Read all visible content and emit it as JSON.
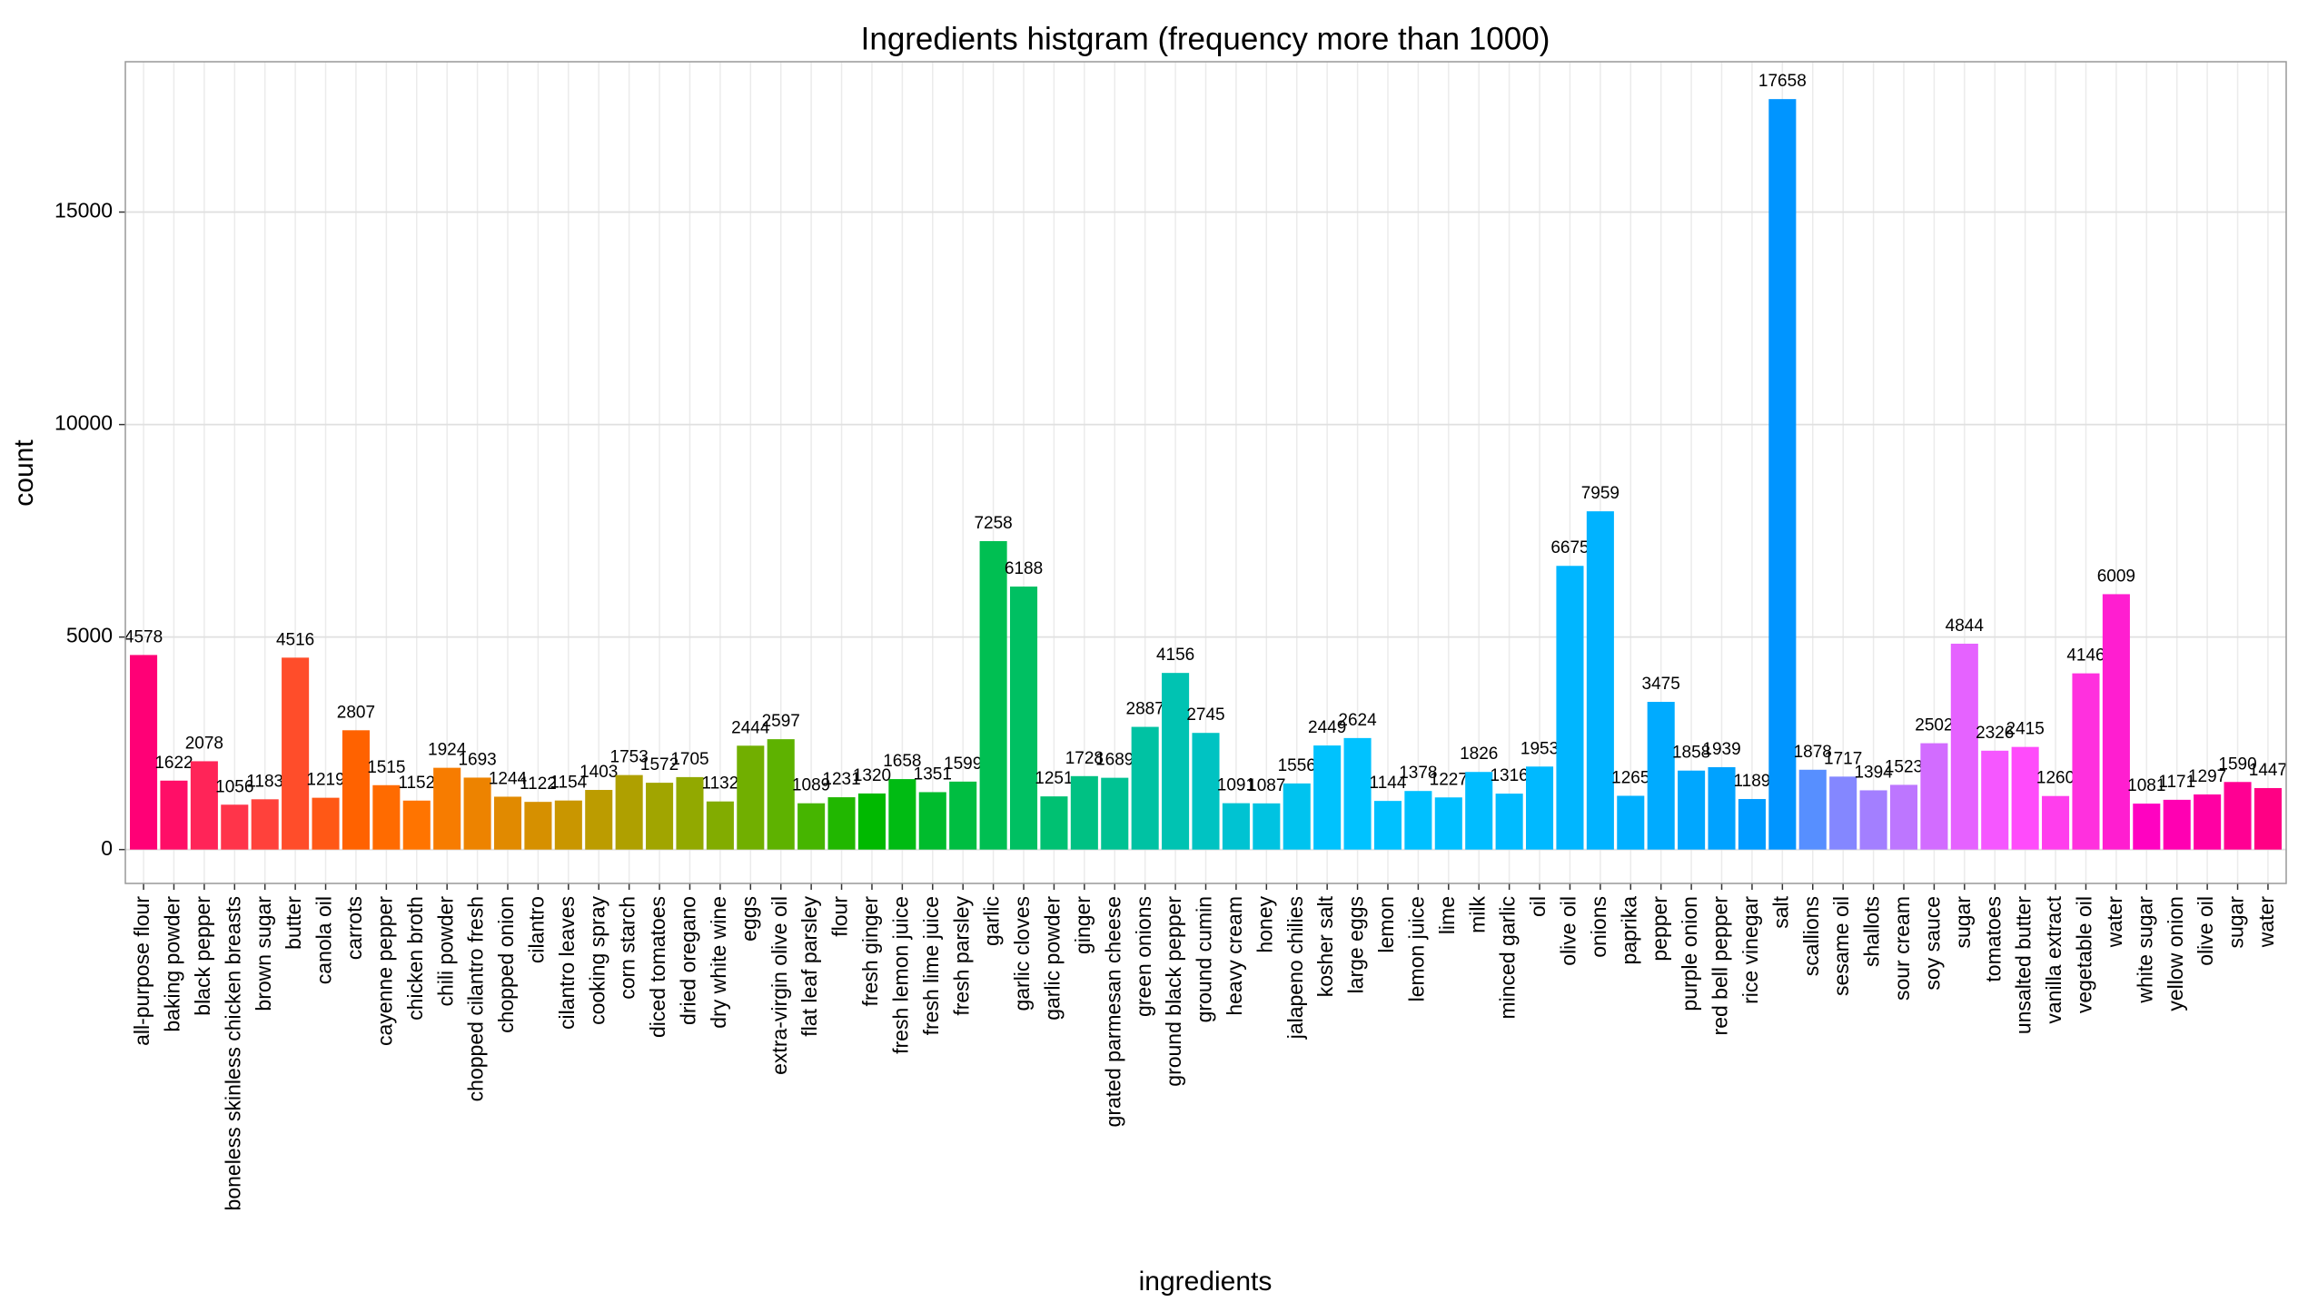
{
  "chart_data": {
    "type": "bar",
    "title": "Ingredients histgram (frequency more than 1000)",
    "x_label": "ingredients",
    "y_label": "count",
    "categories": [
      "all-purpose flour",
      "baking powder",
      "black pepper",
      "boneless skinless chicken breasts",
      "brown sugar",
      "butter",
      "canola oil",
      "carrots",
      "cayenne pepper",
      "chicken broth",
      "chili powder",
      "chopped cilantro fresh",
      "chopped onion",
      "cilantro",
      "cilantro leaves",
      "cooking spray",
      "corn starch",
      "diced tomatoes",
      "dried oregano",
      "dry white wine",
      "eggs",
      "extra-virgin olive oil",
      "flat leaf parsley",
      "flour",
      "fresh ginger",
      "fresh lemon juice",
      "fresh lime juice",
      "fresh parsley",
      "garlic",
      "garlic cloves",
      "garlic powder",
      "ginger",
      "grated parmesan cheese",
      "green onions",
      "ground black pepper",
      "ground cumin",
      "heavy cream",
      "honey",
      "jalapeno chilies",
      "kosher salt",
      "large eggs",
      "lemon",
      "lemon juice",
      "lime",
      "milk",
      "minced garlic",
      "oil",
      "olive oil",
      "onions",
      "paprika",
      "pepper",
      "purple onion",
      "red bell pepper",
      "rice vinegar",
      "salt",
      "scallions",
      "sesame oil",
      "shallots",
      "sour cream",
      "soy sauce",
      "sugar",
      "tomatoes",
      "unsalted butter",
      "vanilla extract",
      "vegetable oil",
      "water",
      "white sugar",
      "yellow onion",
      "olive oil",
      "sugar",
      "water"
    ],
    "values": [
      4578,
      1622,
      2078,
      1056,
      1183,
      4516,
      1219,
      2807,
      1515,
      1152,
      1924,
      1693,
      1244,
      1122,
      1154,
      1403,
      1753,
      1572,
      1705,
      1132,
      2444,
      2597,
      1089,
      1231,
      1320,
      1658,
      1351,
      1599,
      7258,
      6188,
      1251,
      1728,
      1689,
      2887,
      4156,
      2745,
      1091,
      1087,
      1556,
      2449,
      2624,
      1144,
      1378,
      1227,
      1826,
      1316,
      1953,
      6675,
      7959,
      1265,
      3475,
      1858,
      1939,
      1189,
      17658,
      1878,
      1717,
      1394,
      1523,
      2502,
      4844,
      2326,
      2415,
      1260,
      4146,
      6009,
      1081,
      1171,
      1297,
      1590,
      1447
    ],
    "color_scale": "hue",
    "ylim": [
      -797,
      18537
    ],
    "yticks": [
      0,
      5000,
      10000,
      15000
    ],
    "grid": true
  }
}
